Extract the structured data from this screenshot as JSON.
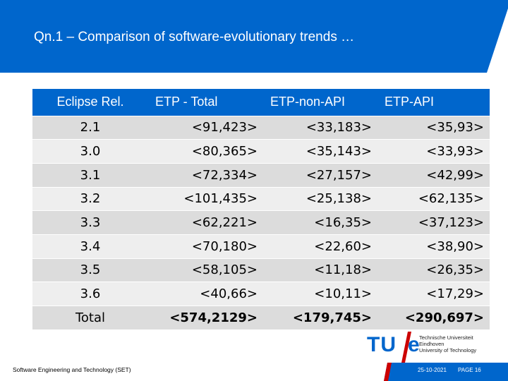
{
  "slide": {
    "title": "Qn.1 – Comparison of software-evolutionary trends …"
  },
  "colors": {
    "header_blue": "#0066cc",
    "accent_red": "#cc0000",
    "row_dark": "#dcdcdc",
    "row_light": "#eeeeee"
  },
  "table": {
    "headers": [
      "Eclipse Rel.",
      "ETP - Total",
      "ETP-non-API",
      "ETP-API"
    ],
    "rows": [
      [
        "2.1",
        "<91,423>",
        "<33,183>",
        "<35,93>"
      ],
      [
        "3.0",
        "<80,365>",
        "<35,143>",
        "<33,93>"
      ],
      [
        "3.1",
        "<72,334>",
        "<27,157>",
        "<42,99>"
      ],
      [
        "3.2",
        "<101,435>",
        "<25,138>",
        "<62,135>"
      ],
      [
        "3.3",
        "<62,221>",
        "<16,35>",
        "<37,123>"
      ],
      [
        "3.4",
        "<70,180>",
        "<22,60>",
        "<38,90>"
      ],
      [
        "3.5",
        "<58,105>",
        "<11,18>",
        "<26,35>"
      ],
      [
        "3.6",
        "<40,66>",
        "<10,11>",
        "<17,29>"
      ],
      [
        "Total",
        "<574,2129>",
        "<179,745>",
        "<290,697>"
      ]
    ]
  },
  "logo": {
    "tu": "TU",
    "e": "e",
    "line1": "Technische Universiteit",
    "line2": "Eindhoven",
    "line3": "University of Technology"
  },
  "footer": {
    "left": "Software Engineering and Technology (SET)",
    "date": "25-10-2021",
    "page": "PAGE 16"
  }
}
